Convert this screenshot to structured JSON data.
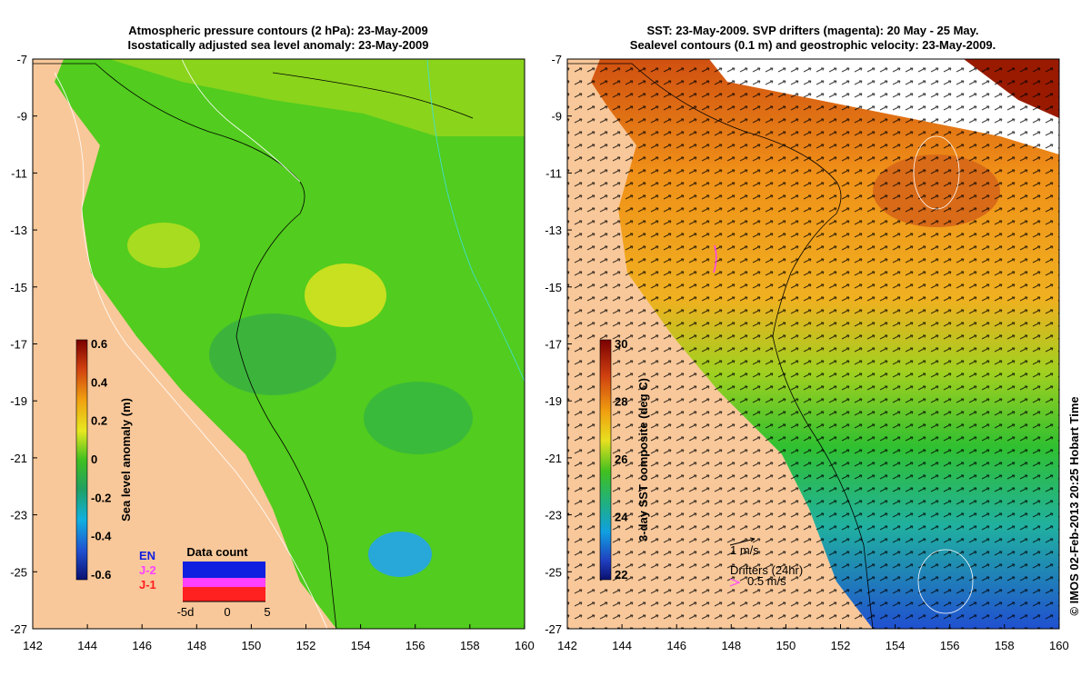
{
  "left_panel": {
    "title_line1": "Atmospheric pressure contours (2 hPa): 23-May-2009",
    "title_line2": "Isostatically adjusted sea level anomaly: 23-May-2009",
    "colorbar": {
      "label": "Sea level anomaly (m)",
      "ticks": [
        "0.6",
        "0.4",
        "0.2",
        "0",
        "-0.2",
        "-0.4",
        "-0.6"
      ]
    },
    "data_count": {
      "title": "Data count",
      "legend": [
        {
          "label": "EN",
          "color": "#1020e0"
        },
        {
          "label": "J-2",
          "color": "#ff40ff"
        },
        {
          "label": "J-1",
          "color": "#ff2020"
        }
      ],
      "axis_ticks": [
        "-5d",
        "0",
        "5"
      ]
    }
  },
  "right_panel": {
    "title_line1": "SST: 23-May-2009. SVP drifters (magenta): 20 May - 25 May.",
    "title_line2": "Sealevel contours (0.1 m) and geostrophic velocity: 23-May-2009.",
    "colorbar": {
      "label": "3-day SST composite (deg C)",
      "ticks": [
        "30",
        "28",
        "26",
        "24",
        "22"
      ]
    },
    "scale_label": "1 m/s",
    "drifter_title": "Drifters (24hr)",
    "drifter_scale": "0.5 m/s"
  },
  "axes": {
    "y_ticks": [
      "-7",
      "-9",
      "-11",
      "-13",
      "-15",
      "-17",
      "-19",
      "-21",
      "-23",
      "-25",
      "-27"
    ],
    "x_ticks": [
      "142",
      "144",
      "146",
      "148",
      "150",
      "152",
      "154",
      "156",
      "158",
      "160"
    ]
  },
  "credit": "© IMOS 02-Feb-2013 20:25 Hobart Time",
  "colors": {
    "land": "#f9c89a",
    "sla_ocean": "#52cc1e",
    "sst_warm": "#f0a018",
    "sst_mid": "#30c030",
    "sst_cool": "#2070e0"
  }
}
